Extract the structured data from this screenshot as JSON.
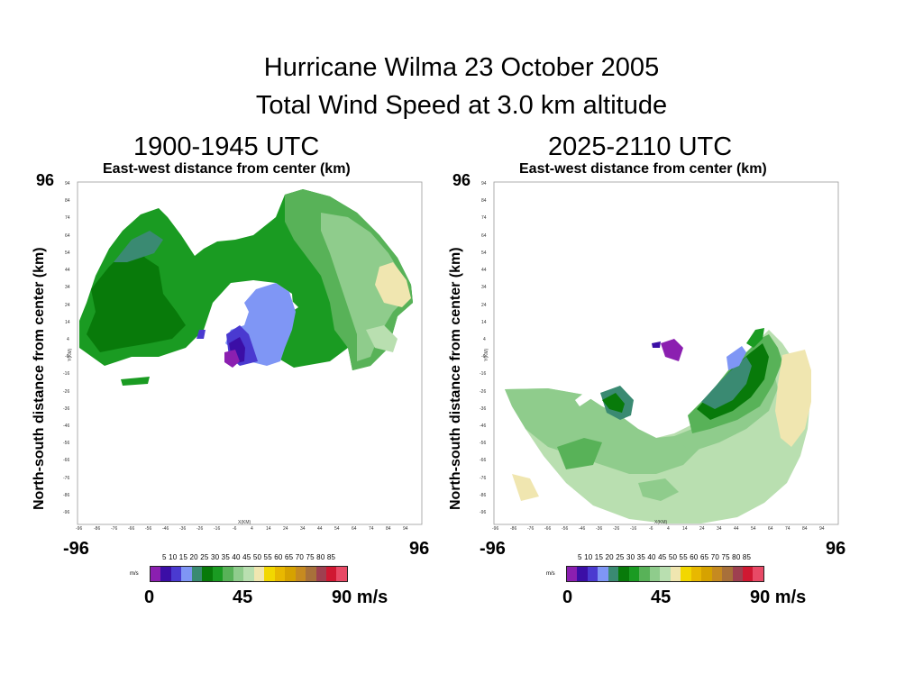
{
  "title": {
    "line1": "Hurricane Wilma  23 October 2005",
    "line2": "Total Wind Speed at 3.0 km altitude"
  },
  "panels": [
    {
      "time": "1900-1945 UTC",
      "xlabel": "East-west distance from center (km)",
      "ylabel": "North-south distance from center (km)",
      "top_label": "96",
      "x_left": "-96",
      "x_right": "96",
      "inner_xlabel": "X(KM)",
      "inner_ylabel": "Y(KM)"
    },
    {
      "time": "2025-2110 UTC",
      "xlabel": "East-west distance from center (km)",
      "ylabel": "North-south distance from center (km)",
      "top_label": "96",
      "x_left": "-96",
      "x_right": "96",
      "inner_xlabel": "X(KM)",
      "inner_ylabel": "Y(KM)"
    }
  ],
  "axis_ticks": [
    "-96",
    "-86",
    "-76",
    "-66",
    "-56",
    "-46",
    "-36",
    "-26",
    "-16",
    "-6",
    "4",
    "14",
    "24",
    "34",
    "44",
    "54",
    "64",
    "74",
    "84",
    "94"
  ],
  "legend": {
    "unit": "m/s",
    "numbers": "5 10 15 20 25 30 35 40 45 50 55 60 65 70 75 80 85",
    "label_0": "0",
    "label_45": "45",
    "label_90": "90 m/s",
    "colors": [
      "#8b1fb0",
      "#3b0ea6",
      "#4a3ad0",
      "#7f96f5",
      "#3a8a72",
      "#087a0a",
      "#1a9b22",
      "#58b258",
      "#8fcc8c",
      "#b9dfb0",
      "#f0e6b0",
      "#f2d700",
      "#e8b800",
      "#d6a200",
      "#c68a20",
      "#a8703a",
      "#9e4050",
      "#d01832",
      "#e84a66"
    ]
  }
}
